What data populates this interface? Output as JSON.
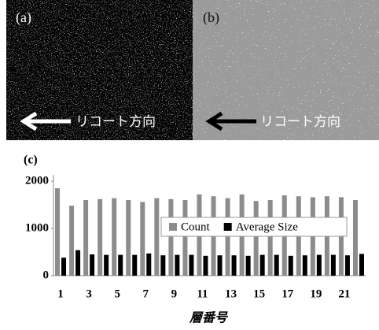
{
  "panels": [
    {
      "label": "(a)",
      "direction_text": "リコート方向"
    },
    {
      "label": "(b)",
      "direction_text": "リコート方向"
    }
  ],
  "chart_data": {
    "type": "bar",
    "panel_label": "(c)",
    "x_label": "層番号",
    "categories": [
      "1",
      null,
      "3",
      null,
      "5",
      null,
      "7",
      null,
      "9",
      null,
      "11",
      null,
      "13",
      null,
      "15",
      null,
      "17",
      null,
      "19",
      null,
      "21",
      null
    ],
    "series": [
      {
        "name": "Count",
        "color": "#8c8c8c",
        "values": [
          1850,
          1480,
          1600,
          1620,
          1640,
          1600,
          1560,
          1640,
          1620,
          1600,
          1720,
          1680,
          1640,
          1720,
          1580,
          1600,
          1700,
          1680,
          1660,
          1680,
          1660,
          1600
        ]
      },
      {
        "name": "Average Size",
        "color": "#000000",
        "values": [
          380,
          540,
          450,
          440,
          440,
          440,
          470,
          430,
          440,
          440,
          420,
          430,
          430,
          420,
          440,
          440,
          420,
          430,
          440,
          440,
          430,
          460
        ]
      }
    ],
    "ylim": [
      0,
      2000
    ],
    "yticks": [
      0,
      1000,
      2000
    ],
    "legend": "center-right"
  }
}
